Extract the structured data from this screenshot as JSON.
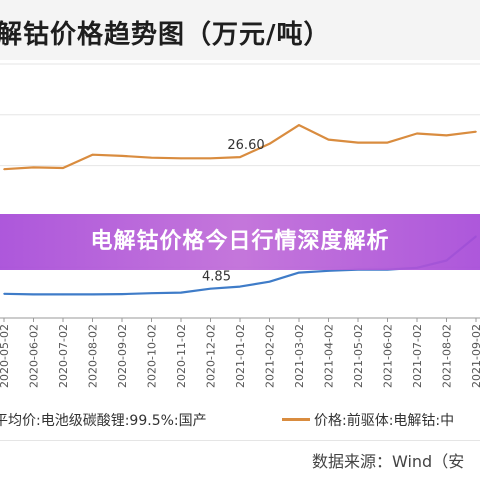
{
  "title": "解钴价格趋势图（万元/吨）",
  "banner": "电解钴价格今日行情深度解析",
  "legend": {
    "left": "平均价:电池级碳酸锂:99.5%:国产",
    "right": "价格:前驱体:电解钴:中"
  },
  "source": "数据来源：Wind（安",
  "colors": {
    "orange": "#d98c3f",
    "blue": "#3f7cc8",
    "banner": "#b35fd8"
  },
  "chart_data": {
    "type": "line",
    "x": [
      "2020-05-02",
      "2020-06-02",
      "2020-07-02",
      "2020-08-02",
      "2020-09-02",
      "2020-10-02",
      "2020-11-02",
      "2020-12-02",
      "2021-01-02",
      "2021-02-02",
      "2021-03-02",
      "2021-04-02",
      "2021-05-02",
      "2021-06-02",
      "2021-07-02",
      "2021-08-02",
      "2021-09-02"
    ],
    "series": [
      {
        "name": "价格:前驱体:电解钴:中",
        "color": "#d98c3f",
        "values": [
          24.6,
          24.9,
          24.8,
          27.0,
          26.8,
          26.5,
          26.4,
          26.4,
          26.6,
          28.8,
          31.9,
          29.5,
          29.0,
          29.0,
          30.5,
          30.2,
          30.8
        ]
      },
      {
        "name": "平均价:电池级碳酸锂:99.5%:国产",
        "color": "#3f7cc8",
        "values": [
          4.0,
          3.9,
          3.9,
          3.9,
          3.95,
          4.1,
          4.2,
          4.85,
          5.2,
          6.0,
          7.5,
          7.8,
          8.0,
          8.0,
          8.3,
          9.5,
          13.5
        ]
      }
    ],
    "annotations": [
      {
        "text": "26.60",
        "x": "2021-01-02",
        "y": 26.6
      },
      {
        "text": "4.85",
        "x": "2020-12-02",
        "y": 4.85
      }
    ],
    "ylim": [
      0,
      42
    ],
    "grid": true
  }
}
